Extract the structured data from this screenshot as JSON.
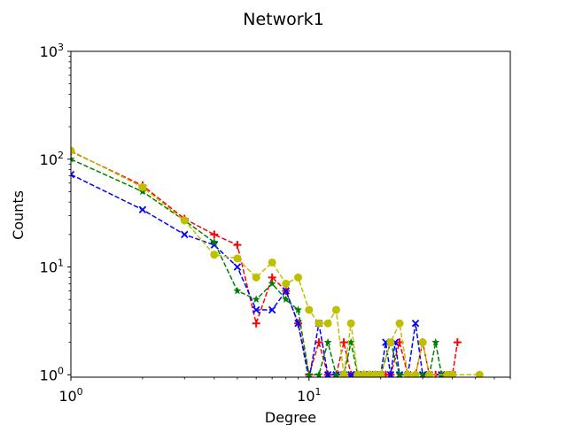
{
  "chart_data": {
    "type": "line",
    "title": "Network1",
    "xlabel": "Degree",
    "ylabel": "Counts",
    "xscale": "log",
    "yscale": "log",
    "xlim": [
      1,
      70
    ],
    "ylim": [
      0.95,
      1000
    ],
    "x_ticks": [
      {
        "value": 1,
        "base": "10",
        "exp": "0"
      },
      {
        "value": 10,
        "base": "10",
        "exp": "1"
      }
    ],
    "y_ticks": [
      {
        "value": 1,
        "base": "10",
        "exp": "0"
      },
      {
        "value": 10,
        "base": "10",
        "exp": "1"
      },
      {
        "value": 100,
        "base": "10",
        "exp": "2"
      },
      {
        "value": 1000,
        "base": "10",
        "exp": "3"
      }
    ],
    "grid": false,
    "legend": "none",
    "series": [
      {
        "color": "#ff0000",
        "marker": "plus",
        "linestyle": "dashed",
        "points": [
          [
            1,
            118
          ],
          [
            2,
            57
          ],
          [
            3,
            28
          ],
          [
            4,
            20
          ],
          [
            5,
            16
          ],
          [
            6,
            3
          ],
          [
            7,
            8
          ],
          [
            8,
            6
          ],
          [
            9,
            3
          ],
          [
            10,
            1
          ],
          [
            11,
            2
          ],
          [
            12,
            1
          ],
          [
            13,
            1
          ],
          [
            14,
            2
          ],
          [
            15,
            1
          ],
          [
            16,
            1
          ],
          [
            17,
            1
          ],
          [
            18,
            1
          ],
          [
            19,
            1
          ],
          [
            21,
            1
          ],
          [
            22,
            1
          ],
          [
            24,
            2
          ],
          [
            26,
            1
          ],
          [
            28,
            1
          ],
          [
            30,
            2
          ],
          [
            32,
            1
          ],
          [
            34,
            1
          ],
          [
            36,
            1
          ],
          [
            40,
            1
          ],
          [
            42,
            2
          ]
        ]
      },
      {
        "color": "#0000ff",
        "marker": "x",
        "linestyle": "dashed",
        "points": [
          [
            1,
            72
          ],
          [
            2,
            34
          ],
          [
            3,
            20
          ],
          [
            4,
            16
          ],
          [
            5,
            10
          ],
          [
            6,
            4
          ],
          [
            7,
            4
          ],
          [
            8,
            6
          ],
          [
            9,
            3
          ],
          [
            10,
            0.9
          ],
          [
            11,
            3
          ],
          [
            12,
            1
          ],
          [
            13,
            1
          ],
          [
            14,
            1
          ],
          [
            15,
            1
          ],
          [
            16,
            1
          ],
          [
            17,
            1
          ],
          [
            18,
            1
          ],
          [
            19,
            1
          ],
          [
            20,
            1
          ],
          [
            21,
            2
          ],
          [
            22,
            1
          ],
          [
            23,
            2
          ],
          [
            24,
            1
          ],
          [
            26,
            1
          ],
          [
            28,
            3
          ],
          [
            30,
            1
          ],
          [
            32,
            1
          ],
          [
            36,
            1
          ],
          [
            40,
            1
          ]
        ]
      },
      {
        "color": "#008000",
        "marker": "star",
        "linestyle": "dashed",
        "points": [
          [
            1,
            100
          ],
          [
            2,
            50
          ],
          [
            3,
            27
          ],
          [
            4,
            17
          ],
          [
            5,
            6
          ],
          [
            6,
            5
          ],
          [
            7,
            7
          ],
          [
            8,
            5
          ],
          [
            9,
            4
          ],
          [
            10,
            1
          ],
          [
            11,
            1
          ],
          [
            12,
            2
          ],
          [
            13,
            1
          ],
          [
            14,
            1
          ],
          [
            15,
            2
          ],
          [
            16,
            1
          ],
          [
            17,
            1
          ],
          [
            18,
            1
          ],
          [
            19,
            1
          ],
          [
            20,
            1
          ],
          [
            22,
            2
          ],
          [
            24,
            1
          ],
          [
            26,
            1
          ],
          [
            28,
            1
          ],
          [
            30,
            1
          ],
          [
            32,
            1
          ],
          [
            34,
            2
          ],
          [
            36,
            1
          ]
        ]
      },
      {
        "color": "#bfbf00",
        "marker": "circle",
        "linestyle": "dashed",
        "points": [
          [
            1,
            120
          ],
          [
            2,
            55
          ],
          [
            3,
            27
          ],
          [
            4,
            13
          ],
          [
            5,
            12
          ],
          [
            6,
            8
          ],
          [
            7,
            11
          ],
          [
            8,
            7
          ],
          [
            9,
            8
          ],
          [
            10,
            4
          ],
          [
            11,
            3
          ],
          [
            12,
            3
          ],
          [
            13,
            4
          ],
          [
            14,
            1
          ],
          [
            15,
            3
          ],
          [
            16,
            1
          ],
          [
            17,
            1
          ],
          [
            18,
            1
          ],
          [
            19,
            1
          ],
          [
            20,
            1
          ],
          [
            22,
            2
          ],
          [
            24,
            3
          ],
          [
            26,
            1
          ],
          [
            28,
            1
          ],
          [
            30,
            2
          ],
          [
            32,
            1
          ],
          [
            38,
            1
          ],
          [
            40,
            1
          ],
          [
            52,
            1
          ]
        ]
      }
    ]
  }
}
